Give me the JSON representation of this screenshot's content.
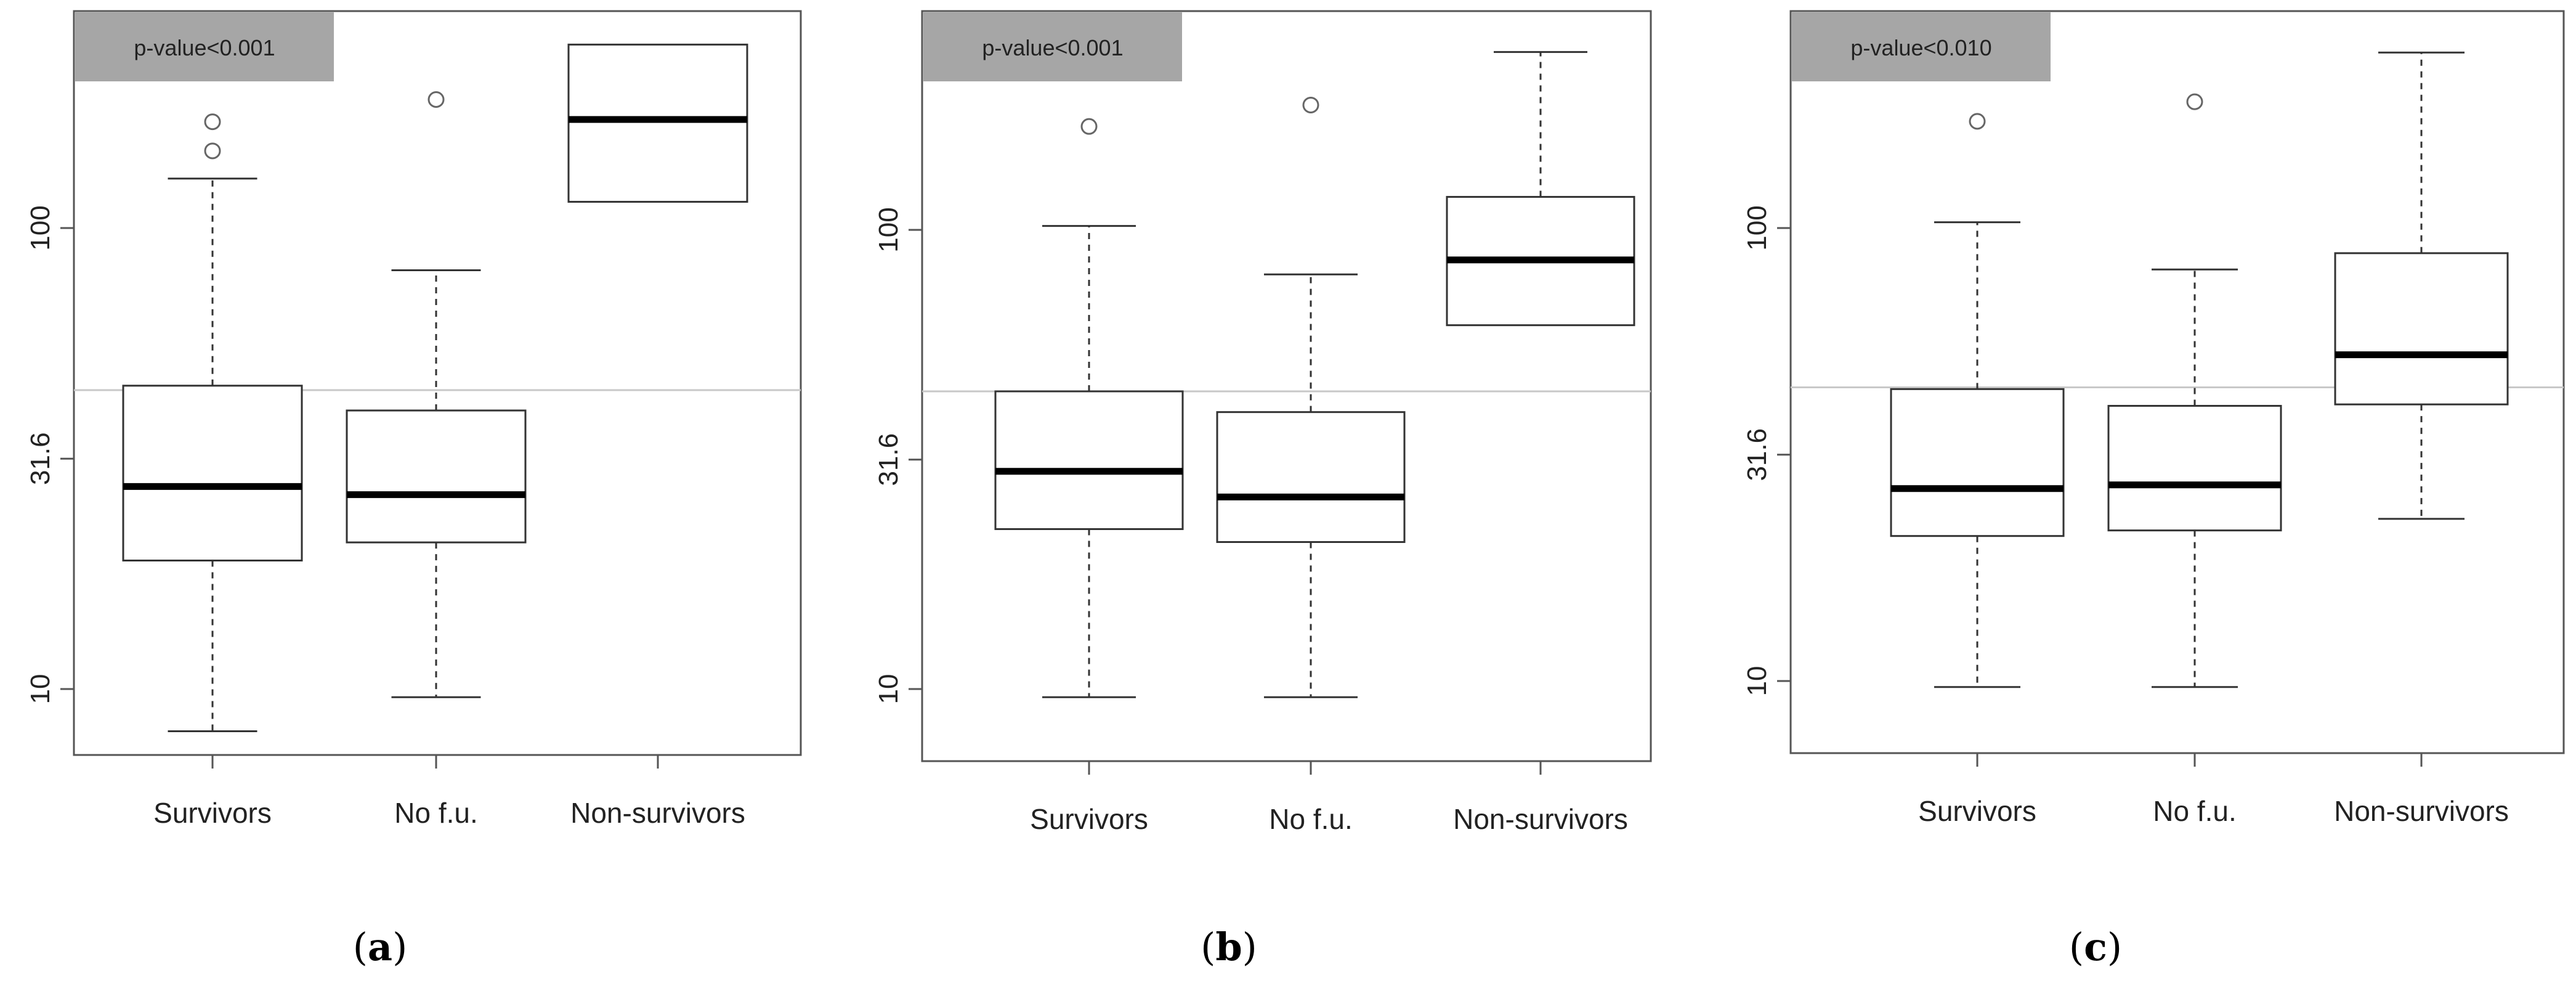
{
  "chart_data": [
    {
      "type": "box",
      "panel": "a",
      "annotation": "p-value<0.001",
      "scale": "log10",
      "ylim": [
        8,
        280
      ],
      "yticks": [
        10,
        31.6,
        100
      ],
      "ytick_labels": [
        "10",
        "31.6",
        "100"
      ],
      "threshold_line": 44.5,
      "categories": [
        "Survivors",
        "No f.u.",
        "Non-survivors"
      ],
      "boxes": [
        {
          "whisker_low": 8.1,
          "q1": 19.0,
          "median": 27.5,
          "q3": 45.5,
          "whisker_high": 128.0,
          "outliers": [
            170,
            147
          ]
        },
        {
          "whisker_low": 9.6,
          "q1": 20.8,
          "median": 26.4,
          "q3": 40.2,
          "whisker_high": 81.0,
          "outliers": [
            190
          ]
        },
        {
          "whisker_low": null,
          "q1": 114.0,
          "median": 172.0,
          "q3": 250.0,
          "whisker_high": null,
          "outliers": []
        }
      ]
    },
    {
      "type": "box",
      "panel": "b",
      "annotation": "p-value<0.001",
      "scale": "log10",
      "ylim": [
        8,
        280
      ],
      "yticks": [
        10,
        31.6,
        100
      ],
      "ytick_labels": [
        "10",
        "31.6",
        "100"
      ],
      "threshold_line": 44.5,
      "categories": [
        "Survivors",
        "No f.u.",
        "Non-survivors"
      ],
      "boxes": [
        {
          "whisker_low": 9.6,
          "q1": 22.3,
          "median": 29.8,
          "q3": 44.5,
          "whisker_high": 102.0,
          "outliers": [
            168
          ]
        },
        {
          "whisker_low": 9.6,
          "q1": 20.9,
          "median": 26.2,
          "q3": 40.1,
          "whisker_high": 80.0,
          "outliers": [
            187
          ]
        },
        {
          "whisker_low": null,
          "q1": 62.0,
          "median": 86.0,
          "q3": 118.0,
          "whisker_high": 244.0,
          "outliers": []
        }
      ]
    },
    {
      "type": "box",
      "panel": "c",
      "annotation": "p-value<0.010",
      "scale": "log10",
      "ylim": [
        8,
        280
      ],
      "yticks": [
        10,
        31.6,
        100
      ],
      "ytick_labels": [
        "10",
        "31.6",
        "100"
      ],
      "threshold_line": 44.5,
      "categories": [
        "Survivors",
        "No f.u.",
        "Non-survivors"
      ],
      "boxes": [
        {
          "whisker_low": 9.7,
          "q1": 20.9,
          "median": 26.6,
          "q3": 44.1,
          "whisker_high": 103.0,
          "outliers": [
            172
          ]
        },
        {
          "whisker_low": 9.7,
          "q1": 21.5,
          "median": 27.1,
          "q3": 40.5,
          "whisker_high": 81.0,
          "outliers": [
            190
          ]
        },
        {
          "whisker_low": 22.8,
          "q1": 40.8,
          "median": 52.5,
          "q3": 88.0,
          "whisker_high": 244.0,
          "outliers": []
        }
      ]
    }
  ],
  "captions": [
    "a",
    "b",
    "c"
  ]
}
